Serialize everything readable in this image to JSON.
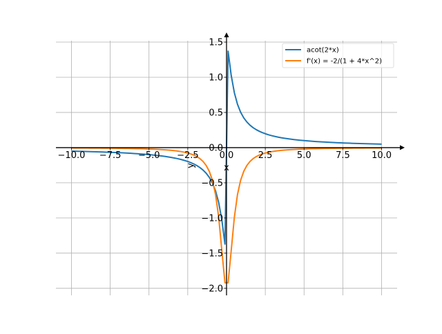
{
  "chart_data": {
    "type": "line",
    "title": "",
    "xlabel": "x",
    "ylabel": "y",
    "xlim": [
      -11,
      11
    ],
    "ylim": [
      -2.1,
      1.52
    ],
    "grid": true,
    "x_samples": {
      "start": -10,
      "stop": 10,
      "count": 100
    },
    "x_ticks": [
      -10,
      -7.5,
      -5,
      -2.5,
      0,
      2.5,
      5,
      7.5,
      10
    ],
    "x_tick_labels": [
      "−10.0",
      "−7.5",
      "−5.0",
      "−2.5",
      "0.0",
      "2.5",
      "5.0",
      "7.5",
      "10.0"
    ],
    "y_ticks": [
      -2,
      -1.5,
      -1,
      -0.5,
      0,
      0.5,
      1,
      1.5
    ],
    "y_tick_labels": [
      "−2.0",
      "−1.5",
      "−1.0",
      "−0.5",
      "0.0",
      "0.5",
      "1.0",
      "1.5"
    ],
    "legend_position": "top-right",
    "series": [
      {
        "name": "acot(2*x)",
        "expr": "acot2x",
        "color": "#1f77b4"
      },
      {
        "name": "f'(x) = -2/(1 + 4*x^2)",
        "expr": "deriv",
        "color": "#ff7f0e"
      }
    ]
  }
}
